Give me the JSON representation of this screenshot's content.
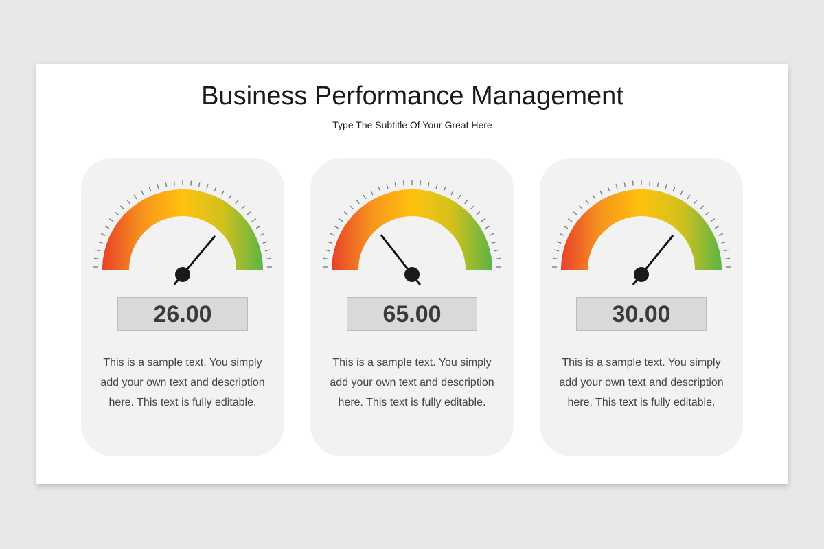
{
  "title": "Business Performance Management",
  "subtitle": "Type The Subtitle Of Your Great Here",
  "colors": {
    "gradient": [
      "#e8412b",
      "#f7941d",
      "#ffc20e",
      "#d2c11c",
      "#5cb446"
    ],
    "card": "#f2f2f2",
    "needle": "#111111"
  },
  "chart_data": [
    {
      "type": "gauge",
      "value": 26.0,
      "label": "26.00",
      "description": "This is a sample text. You simply add your own text and description here. This text is fully editable."
    },
    {
      "type": "gauge",
      "value": 65.0,
      "label": "65.00",
      "description": "This is a sample text. You simply add your own text and description here. This text is fully editable."
    },
    {
      "type": "gauge",
      "value": 30.0,
      "label": "30.00",
      "description": "This is a sample text. You simply add your own text and description here. This text is fully editable."
    }
  ]
}
